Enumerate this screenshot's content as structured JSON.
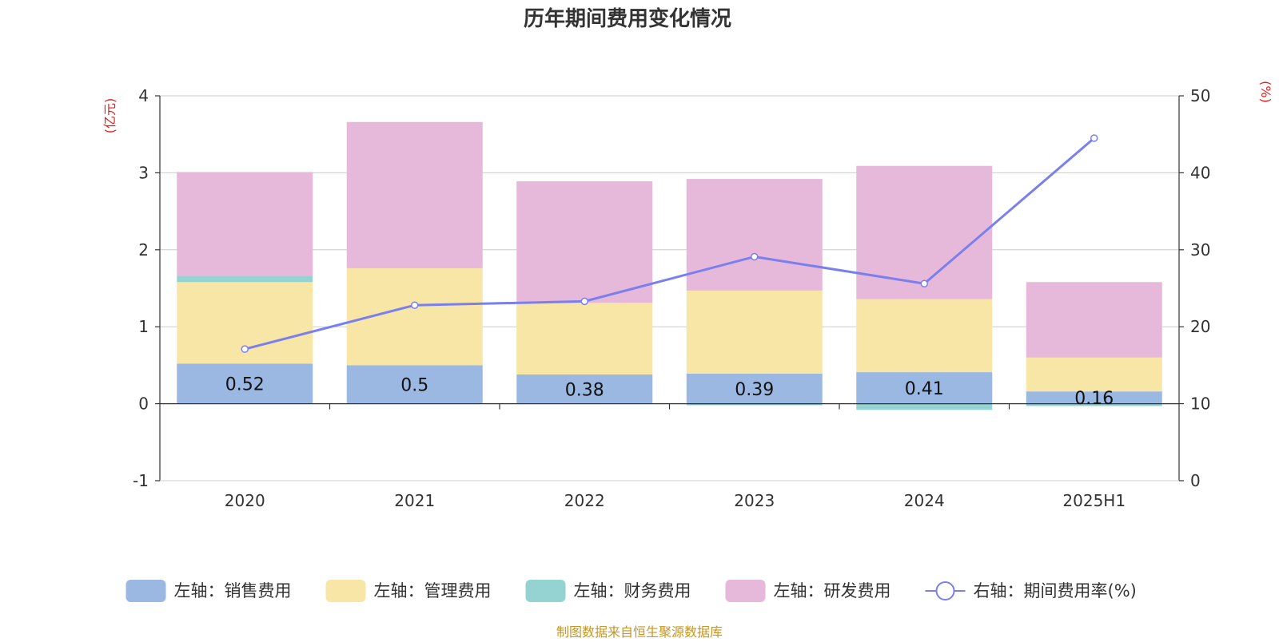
{
  "chart_data": {
    "type": "bar",
    "title": "历年期间费用变化情况",
    "left_unit": "(亿元)",
    "right_unit": "(%)",
    "categories": [
      "2020",
      "2021",
      "2022",
      "2023",
      "2024",
      "2025H1"
    ],
    "y_left": {
      "min": -1,
      "max": 4,
      "ticks": [
        -1,
        0,
        1,
        2,
        3,
        4
      ]
    },
    "y_right": {
      "min": 0,
      "max": 50,
      "ticks": [
        0,
        10,
        20,
        30,
        40,
        50
      ]
    },
    "grid": true,
    "legend_position": "bottom",
    "stacked": true,
    "series": [
      {
        "name": "左轴：销售费用",
        "axis": "left",
        "type": "bar",
        "color": "#9bb8e2",
        "values": [
          0.52,
          0.5,
          0.38,
          0.39,
          0.41,
          0.16
        ],
        "labels": [
          "0.52",
          "0.5",
          "0.38",
          "0.39",
          "0.41",
          "0.16"
        ]
      },
      {
        "name": "左轴：管理费用",
        "axis": "left",
        "type": "bar",
        "color": "#f7e6a6",
        "values": [
          1.06,
          1.26,
          0.93,
          1.08,
          0.95,
          0.44
        ]
      },
      {
        "name": "左轴：财务费用",
        "axis": "left",
        "type": "bar",
        "color": "#95d3d3",
        "values": [
          0.08,
          0.0,
          0.0,
          -0.02,
          -0.08,
          -0.03
        ]
      },
      {
        "name": "左轴：研发费用",
        "axis": "left",
        "type": "bar",
        "color": "#e6b8da",
        "values": [
          1.35,
          1.9,
          1.58,
          1.45,
          1.73,
          0.98
        ]
      },
      {
        "name": "右轴：期间费用率(%)",
        "axis": "right",
        "type": "line",
        "color": "#7a7ff0",
        "values": [
          17.1,
          22.8,
          23.3,
          29.1,
          25.6,
          44.5
        ]
      }
    ]
  },
  "source_note": "制图数据来自恒生聚源数据库"
}
